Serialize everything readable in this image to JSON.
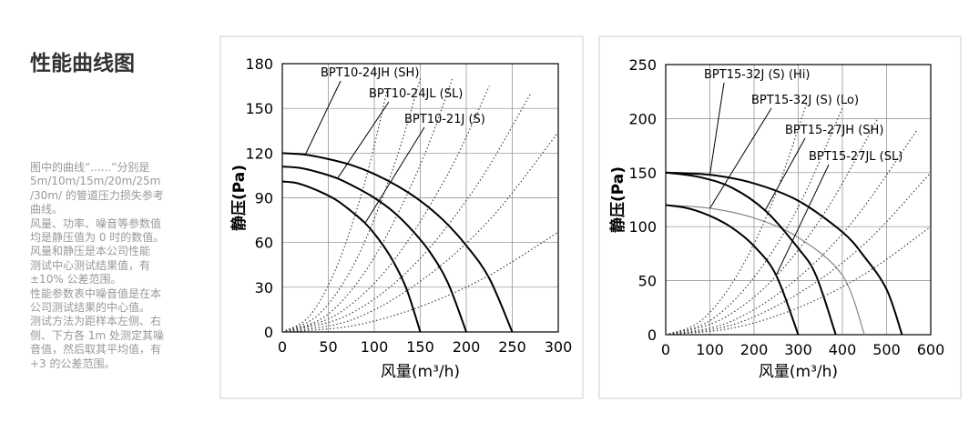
{
  "page": {
    "title": "性能曲线图",
    "notes": [
      "图中的曲线“......”分别是",
      "5m/10m/15m/20m/25m",
      "/30m/ 的管道压力损失参考",
      "曲线。",
      "风量、功率、噪音等参数值",
      "均是静压值为 0 时的数值。",
      "风量和静压是本公司性能",
      "测试中心测试结果值，有",
      "±10% 公差范围。",
      "性能参数表中噪音值是在本",
      "公司测试结果的中心值。",
      "测试方法为距样本左侧、右",
      "侧、下方各 1m 处测定其噪",
      "音值，然后取其平均值，有",
      "+3 的公差范围。"
    ]
  },
  "chart_data": [
    {
      "type": "line",
      "xlabel": "风量(m³/h)",
      "ylabel": "静压(Pa)",
      "xlim": [
        0,
        300
      ],
      "ylim": [
        0,
        180
      ],
      "xticks": [
        0,
        50,
        100,
        150,
        200,
        250,
        300
      ],
      "yticks": [
        0,
        30,
        60,
        90,
        120,
        150,
        180
      ],
      "grid": true,
      "series": [
        {
          "name": "BPT10-24JH (SH)",
          "color": "#000000",
          "dash": "solid",
          "x": [
            0,
            25,
            50,
            75,
            100,
            125,
            150,
            175,
            200,
            225,
            250
          ],
          "values": [
            120,
            119,
            116,
            112,
            106,
            98,
            88,
            75,
            58,
            36,
            0
          ]
        },
        {
          "name": "BPT10-24JL (SL)",
          "color": "#000000",
          "dash": "solid",
          "x": [
            0,
            20,
            40,
            60,
            80,
            100,
            120,
            140,
            160,
            180,
            200
          ],
          "values": [
            111,
            110,
            107,
            103,
            97,
            90,
            81,
            69,
            54,
            33,
            0
          ]
        },
        {
          "name": "BPT10-21J (S)",
          "color": "#000000",
          "dash": "solid",
          "x": [
            0,
            15,
            30,
            45,
            60,
            75,
            90,
            105,
            120,
            135,
            150
          ],
          "values": [
            101,
            100,
            97,
            93,
            88,
            81,
            73,
            62,
            48,
            29,
            0
          ]
        },
        {
          "color": "#333333",
          "dash": "dotted",
          "x": [
            0,
            30,
            60,
            90,
            115
          ],
          "values": [
            0,
            11,
            45,
            101,
            165
          ]
        },
        {
          "color": "#333333",
          "dash": "dotted",
          "x": [
            0,
            40,
            80,
            120,
            150
          ],
          "values": [
            0,
            12,
            48,
            109,
            170
          ]
        },
        {
          "color": "#333333",
          "dash": "dotted",
          "x": [
            0,
            50,
            100,
            150,
            185
          ],
          "values": [
            0,
            12,
            50,
            112,
            170
          ]
        },
        {
          "color": "#333333",
          "dash": "dotted",
          "x": [
            0,
            60,
            120,
            180,
            225
          ],
          "values": [
            0,
            12,
            47,
            106,
            165
          ]
        },
        {
          "color": "#333333",
          "dash": "dotted",
          "x": [
            0,
            70,
            140,
            210,
            270
          ],
          "values": [
            0,
            11,
            43,
            97,
            160
          ]
        },
        {
          "color": "#333333",
          "dash": "dotted",
          "x": [
            0,
            75,
            150,
            225,
            300
          ],
          "values": [
            0,
            8,
            34,
            75,
            134
          ]
        },
        {
          "color": "#333333",
          "dash": "dotted",
          "x": [
            0,
            75,
            150,
            225,
            300
          ],
          "values": [
            0,
            4,
            17,
            38,
            67
          ]
        }
      ]
    },
    {
      "type": "line",
      "xlabel": "风量(m³/h)",
      "ylabel": "静压(Pa)",
      "xlim": [
        0,
        600
      ],
      "ylim": [
        0,
        250
      ],
      "xticks": [
        0,
        100,
        200,
        300,
        400,
        500,
        600
      ],
      "yticks": [
        0,
        50,
        100,
        150,
        200,
        250
      ],
      "grid": true,
      "series": [
        {
          "name": "BPT15-32J (S) (Hi)",
          "color": "#000000",
          "dash": "solid",
          "x": [
            0,
            100,
            200,
            300,
            400,
            450,
            500,
            535
          ],
          "values": [
            150,
            148,
            140,
            124,
            95,
            72,
            42,
            0
          ]
        },
        {
          "name": "BPT15-32J (S) (Lo)",
          "color": "#888888",
          "dash": "solid",
          "x": [
            0,
            100,
            200,
            300,
            400,
            450
          ],
          "values": [
            120,
            117,
            108,
            90,
            55,
            0
          ]
        },
        {
          "name": "BPT15-27JH (SH)",
          "color": "#000000",
          "dash": "solid",
          "x": [
            0,
            75,
            150,
            225,
            300,
            340,
            385
          ],
          "values": [
            150,
            146,
            136,
            115,
            80,
            55,
            0
          ]
        },
        {
          "name": "BPT15-27JL (SL)",
          "color": "#000000",
          "dash": "solid",
          "x": [
            0,
            50,
            100,
            150,
            200,
            250,
            300
          ],
          "values": [
            120,
            117,
            110,
            99,
            82,
            55,
            0
          ]
        },
        {
          "color": "#333333",
          "dash": "dotted",
          "x": [
            0,
            80,
            160,
            240,
            320
          ],
          "values": [
            0,
            13,
            54,
            121,
            215
          ]
        },
        {
          "color": "#333333",
          "dash": "dotted",
          "x": [
            0,
            100,
            200,
            300,
            400
          ],
          "values": [
            0,
            13,
            53,
            118,
            210
          ]
        },
        {
          "color": "#333333",
          "dash": "dotted",
          "x": [
            0,
            120,
            240,
            360,
            480
          ],
          "values": [
            0,
            13,
            50,
            113,
            200
          ]
        },
        {
          "color": "#333333",
          "dash": "dotted",
          "x": [
            0,
            140,
            280,
            420,
            570
          ],
          "values": [
            0,
            11,
            46,
            103,
            190
          ]
        },
        {
          "color": "#333333",
          "dash": "dotted",
          "x": [
            0,
            150,
            300,
            450,
            600
          ],
          "values": [
            0,
            9,
            38,
            84,
            150
          ]
        },
        {
          "color": "#333333",
          "dash": "dotted",
          "x": [
            0,
            150,
            300,
            450,
            600
          ],
          "values": [
            0,
            6,
            25,
            56,
            100
          ]
        }
      ]
    }
  ]
}
